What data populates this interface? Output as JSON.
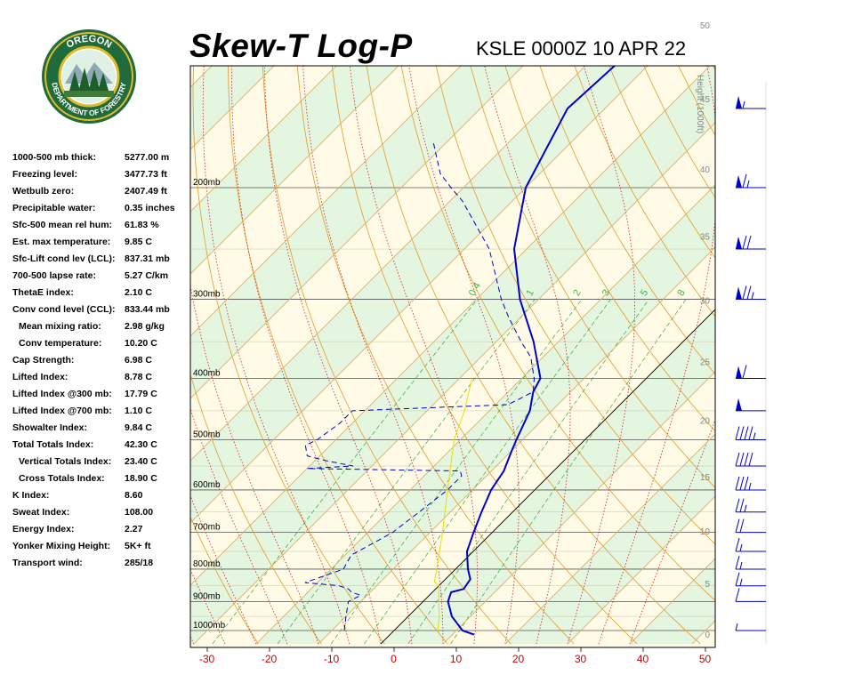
{
  "header": {
    "title": "Skew-T Log-P",
    "station_time": "KSLE 0000Z 10 APR 22"
  },
  "logo": {
    "top_text": "OREGON",
    "bottom_text": "DEPARTMENT OF FORESTRY",
    "colors": {
      "ring": "#1f6b3b",
      "gold": "#e2b928",
      "tree": "#1d5e2d"
    }
  },
  "indices": [
    {
      "label": "1000-500 mb thick:",
      "value": "5277.00 m"
    },
    {
      "label": "Freezing level:",
      "value": "3477.73 ft"
    },
    {
      "label": "Wetbulb zero:",
      "value": "2407.49 ft"
    },
    {
      "label": "Precipitable water:",
      "value": "0.35 inches"
    },
    {
      "label": "Sfc-500 mean rel hum:",
      "value": "61.83 %"
    },
    {
      "label": "Est. max temperature:",
      "value": "9.85 C"
    },
    {
      "label": "Sfc-Lift cond lev (LCL):",
      "value": "837.31 mb"
    },
    {
      "label": "700-500 lapse rate:",
      "value": "5.27 C/km"
    },
    {
      "label": "ThetaE index:",
      "value": "2.10 C"
    },
    {
      "label": "Conv cond level (CCL):",
      "value": "833.44 mb"
    },
    {
      "label": "Mean mixing ratio:",
      "value": "2.98 g/kg",
      "indent": true
    },
    {
      "label": "Conv temperature:",
      "value": "10.20 C",
      "indent": true
    },
    {
      "label": "Cap Strength:",
      "value": "6.98 C"
    },
    {
      "label": "Lifted Index:",
      "value": "8.78 C"
    },
    {
      "label": "Lifted Index @300 mb:",
      "value": "17.79 C"
    },
    {
      "label": "Lifted Index @700 mb:",
      "value": "1.10 C"
    },
    {
      "label": "Showalter Index:",
      "value": "9.84 C"
    },
    {
      "label": "Total Totals Index:",
      "value": "42.30 C"
    },
    {
      "label": "Vertical Totals Index:",
      "value": "23.40 C",
      "indent": true
    },
    {
      "label": "Cross Totals Index:",
      "value": "18.90 C",
      "indent": true
    },
    {
      "label": "K Index:",
      "value": "8.60"
    },
    {
      "label": "Sweat Index:",
      "value": "108.00"
    },
    {
      "label": "Energy Index:",
      "value": "2.27"
    },
    {
      "label": "Yonker Mixing Height:",
      "value": "5K+ ft"
    },
    {
      "label": "Transport wind:",
      "value": "285/18"
    }
  ],
  "chart_data": {
    "type": "line",
    "title": "Skew-T Log-P",
    "xlim": [
      -30,
      50
    ],
    "x_ticks": [
      "-30",
      "-20",
      "-10",
      "0",
      "10",
      "20",
      "30",
      "40",
      "50"
    ],
    "pressure_levels": [
      {
        "p": 200,
        "label": "200mb"
      },
      {
        "p": 300,
        "label": "300mb"
      },
      {
        "p": 400,
        "label": "400mb"
      },
      {
        "p": 500,
        "label": "500mb"
      },
      {
        "p": 600,
        "label": "600mb"
      },
      {
        "p": 700,
        "label": "700mb"
      },
      {
        "p": 800,
        "label": "800mb"
      },
      {
        "p": 900,
        "label": "900mb"
      },
      {
        "p": 1000,
        "label": "1000mb"
      }
    ],
    "height_axis": {
      "title": "Height (1000ft)",
      "ticks": [
        "0",
        "5",
        "10",
        "15",
        "20",
        "25",
        "30",
        "35",
        "40",
        "45",
        "50"
      ]
    },
    "mixing_ratio_labels": [
      "0.4",
      "1",
      "2",
      "3",
      "5",
      "8"
    ],
    "series": [
      {
        "role": "temperature",
        "style": "solid",
        "color": "#0000cc",
        "points": [
          [
            1015,
            13.5
          ],
          [
            1000,
            11
          ],
          [
            950,
            7
          ],
          [
            900,
            4
          ],
          [
            870,
            3
          ],
          [
            860,
            4.5
          ],
          [
            830,
            4
          ],
          [
            800,
            2
          ],
          [
            750,
            -1
          ],
          [
            700,
            -3
          ],
          [
            650,
            -5
          ],
          [
            600,
            -7
          ],
          [
            560,
            -8
          ],
          [
            550,
            -8.5
          ],
          [
            520,
            -10
          ],
          [
            500,
            -11
          ],
          [
            450,
            -13.5
          ],
          [
            420,
            -16
          ],
          [
            400,
            -17
          ],
          [
            350,
            -24
          ],
          [
            300,
            -33
          ],
          [
            250,
            -42
          ],
          [
            200,
            -50
          ],
          [
            150,
            -56
          ],
          [
            120,
            -55
          ]
        ]
      },
      {
        "role": "dewpoint",
        "style": "dashed",
        "color": "#0000cc",
        "points": [
          [
            1000,
            -8
          ],
          [
            950,
            -10
          ],
          [
            900,
            -12
          ],
          [
            880,
            -11
          ],
          [
            870,
            -13
          ],
          [
            860,
            -14
          ],
          [
            850,
            -16
          ],
          [
            840,
            -22
          ],
          [
            800,
            -18
          ],
          [
            760,
            -19
          ],
          [
            720,
            -17
          ],
          [
            700,
            -16
          ],
          [
            650,
            -15
          ],
          [
            600,
            -14
          ],
          [
            570,
            -14
          ],
          [
            560,
            -15
          ],
          [
            555,
            -40
          ],
          [
            550,
            -33
          ],
          [
            540,
            -38
          ],
          [
            530,
            -42
          ],
          [
            520,
            -43
          ],
          [
            510,
            -44
          ],
          [
            500,
            -43
          ],
          [
            470,
            -42
          ],
          [
            450,
            -42
          ],
          [
            440,
            -18
          ],
          [
            430,
            -17
          ],
          [
            420,
            -16
          ],
          [
            400,
            -18
          ],
          [
            370,
            -22
          ],
          [
            350,
            -26
          ],
          [
            320,
            -32
          ],
          [
            300,
            -36
          ],
          [
            250,
            -46
          ],
          [
            210,
            -58
          ],
          [
            200,
            -62
          ],
          [
            190,
            -66
          ],
          [
            170,
            -72
          ]
        ]
      },
      {
        "role": "parcel",
        "style": "solid",
        "color": "#e8e000",
        "points": [
          [
            1000,
            7
          ],
          [
            950,
            5
          ],
          [
            900,
            2.5
          ],
          [
            850,
            0
          ],
          [
            837,
            -1.4
          ],
          [
            800,
            -3
          ],
          [
            700,
            -8
          ],
          [
            600,
            -14
          ],
          [
            500,
            -21
          ],
          [
            450,
            -24
          ],
          [
            400,
            -28
          ]
        ]
      }
    ],
    "wind_barbs": [
      {
        "p": 1000,
        "dir": 270,
        "spd": 5
      },
      {
        "p": 900,
        "dir": 270,
        "spd": 10
      },
      {
        "p": 850,
        "dir": 270,
        "spd": 15
      },
      {
        "p": 800,
        "dir": 270,
        "spd": 15
      },
      {
        "p": 750,
        "dir": 270,
        "spd": 15
      },
      {
        "p": 700,
        "dir": 270,
        "spd": 20
      },
      {
        "p": 650,
        "dir": 270,
        "spd": 25
      },
      {
        "p": 600,
        "dir": 270,
        "spd": 35
      },
      {
        "p": 550,
        "dir": 270,
        "spd": 40
      },
      {
        "p": 500,
        "dir": 270,
        "spd": 45
      },
      {
        "p": 450,
        "dir": 270,
        "spd": 50
      },
      {
        "p": 400,
        "dir": 270,
        "spd": 60
      },
      {
        "p": 300,
        "dir": 270,
        "spd": 75
      },
      {
        "p": 250,
        "dir": 270,
        "spd": 70
      },
      {
        "p": 200,
        "dir": 270,
        "spd": 65
      },
      {
        "p": 150,
        "dir": 270,
        "spd": 55
      },
      {
        "p": 120,
        "dir": 270,
        "spd": 20
      }
    ]
  }
}
